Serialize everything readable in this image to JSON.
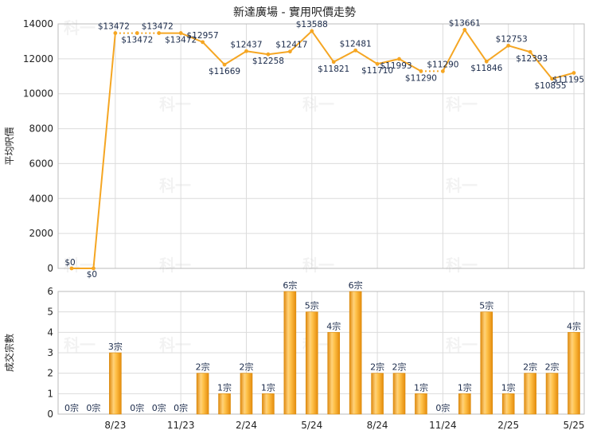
{
  "chart_data": [
    {
      "type": "line",
      "title": "新達廣場 - 實用呎價走勢",
      "ylabel": "平均呎價",
      "ylim": [
        0,
        14000
      ],
      "yticks": [
        0,
        2000,
        4000,
        6000,
        8000,
        10000,
        12000,
        14000
      ],
      "grid": true,
      "color": "#f5a623",
      "x": [
        "2023-06",
        "2023-07",
        "2023-08",
        "2023-09",
        "2023-10",
        "2023-11",
        "2023-12",
        "2024-01",
        "2024-02",
        "2024-03",
        "2024-04",
        "2024-05",
        "2024-06",
        "2024-07",
        "2024-08",
        "2024-09",
        "2024-10",
        "2024-11",
        "2024-12",
        "2025-01",
        "2025-02",
        "2025-03",
        "2025-04",
        "2025-05"
      ],
      "values": [
        0,
        0,
        13472,
        13472,
        13472,
        13472,
        12957,
        11669,
        12437,
        12258,
        12417,
        13588,
        11821,
        12481,
        11710,
        11993,
        11290,
        11290,
        13661,
        11846,
        12753,
        12393,
        10855,
        11195
      ],
      "value_labels": [
        "$0",
        "$0",
        "$13472",
        "$13472",
        "$13472",
        "$13472",
        "$12957",
        "$11669",
        "$12437",
        "$12258",
        "$12417",
        "$13588",
        "$11821",
        "$12481",
        "$11710",
        "$11993",
        "$11290",
        "$11290",
        "$13661",
        "$11846",
        "$12753",
        "$12393",
        "$10855",
        "$11195"
      ],
      "carried_forward": [
        false,
        false,
        false,
        true,
        true,
        false,
        false,
        false,
        false,
        false,
        false,
        false,
        false,
        false,
        false,
        false,
        false,
        true,
        false,
        false,
        false,
        false,
        false,
        false
      ]
    },
    {
      "type": "bar",
      "ylabel": "成交宗數",
      "ylim": [
        0,
        6
      ],
      "yticks": [
        0,
        1,
        2,
        3,
        4,
        5,
        6
      ],
      "grid": true,
      "color": "#f5a623",
      "x": [
        "2023-06",
        "2023-07",
        "2023-08",
        "2023-09",
        "2023-10",
        "2023-11",
        "2023-12",
        "2024-01",
        "2024-02",
        "2024-03",
        "2024-04",
        "2024-05",
        "2024-06",
        "2024-07",
        "2024-08",
        "2024-09",
        "2024-10",
        "2024-11",
        "2024-12",
        "2025-01",
        "2025-02",
        "2025-03",
        "2025-04",
        "2025-05"
      ],
      "values": [
        0,
        0,
        3,
        0,
        0,
        0,
        2,
        1,
        2,
        1,
        6,
        5,
        4,
        6,
        2,
        2,
        1,
        0,
        1,
        5,
        1,
        2,
        2,
        4
      ],
      "value_labels": [
        "0宗",
        "0宗",
        "3宗",
        "0宗",
        "0宗",
        "0宗",
        "2宗",
        "1宗",
        "2宗",
        "1宗",
        "6宗",
        "5宗",
        "4宗",
        "6宗",
        "2宗",
        "2宗",
        "1宗",
        "0宗",
        "1宗",
        "5宗",
        "1宗",
        "2宗",
        "2宗",
        "4宗"
      ],
      "xtick_labels": [
        "",
        "",
        "8/23",
        "",
        "",
        "11/23",
        "",
        "",
        "2/24",
        "",
        "",
        "5/24",
        "",
        "",
        "8/24",
        "",
        "",
        "11/24",
        "",
        "",
        "2/25",
        "",
        "",
        "5/25"
      ]
    }
  ],
  "watermark": "科一"
}
